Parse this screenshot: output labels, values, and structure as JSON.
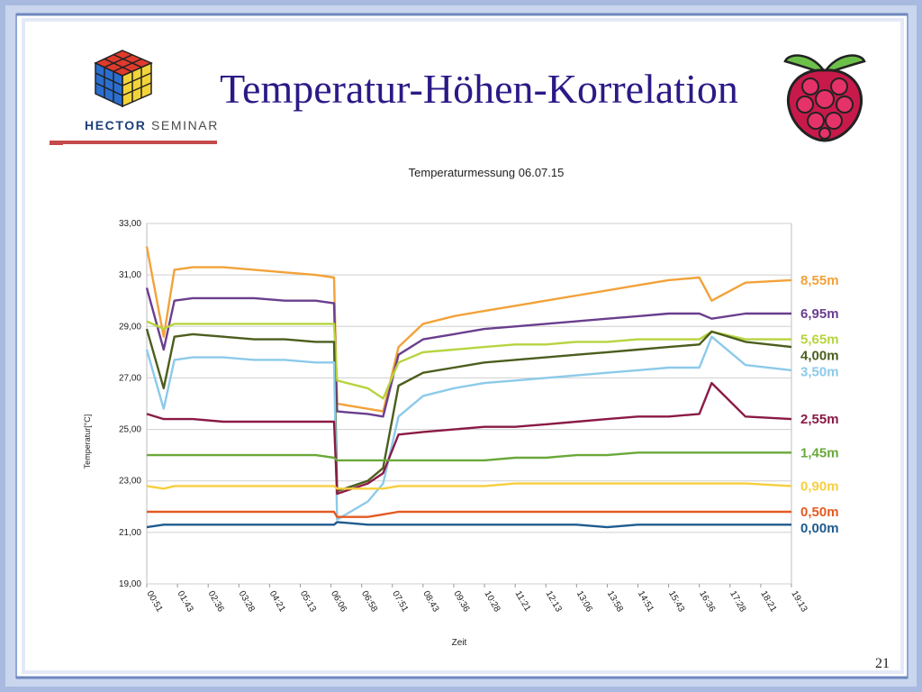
{
  "slide": {
    "title": "Temperatur-Höhen-Korrelation",
    "logo_text_bold": "HECTOR",
    "logo_text_regular": "SEMINAR",
    "page_number": "21",
    "icons": [
      "rubiks-cube-icon",
      "raspberry-pi-logo-icon"
    ]
  },
  "chart_data": {
    "type": "line",
    "title": "Temperaturmessung 06.07.15",
    "xlabel": "Zeit",
    "ylabel": "Temperatur[°C]",
    "ylim": [
      19,
      33
    ],
    "yticks": [
      "33,00",
      "31,00",
      "29,00",
      "27,00",
      "25,00",
      "23,00",
      "21,00",
      "19,00"
    ],
    "yticks_values": [
      33,
      31,
      29,
      27,
      25,
      23,
      21,
      19
    ],
    "x_ticks": [
      "00:51",
      "01:43",
      "02:36",
      "03:28",
      "04:21",
      "05:13",
      "06:06",
      "06:58",
      "07:51",
      "08:43",
      "09:36",
      "10:28",
      "11:21",
      "12:13",
      "13:06",
      "13:58",
      "14:51",
      "15:43",
      "16:36",
      "17:28",
      "18:21",
      "19:13"
    ],
    "grid": true,
    "legend_placement": "right, at line ends",
    "series": [
      {
        "name": "8,55m",
        "color": "#f2a23a",
        "values": [
          32.1,
          28.6,
          31.2,
          31.3,
          31.3,
          31.2,
          31.1,
          31.0,
          30.9,
          26.0,
          25.8,
          25.7,
          28.2,
          29.1,
          29.4,
          29.6,
          29.8,
          30.0,
          30.2,
          30.4,
          30.6,
          30.8,
          30.9,
          30.0,
          30.7,
          30.8
        ]
      },
      {
        "name": "6,95m",
        "color": "#6a3e8e",
        "values": [
          30.5,
          28.1,
          30.0,
          30.1,
          30.1,
          30.1,
          30.0,
          30.0,
          29.9,
          25.7,
          25.6,
          25.5,
          27.9,
          28.5,
          28.7,
          28.9,
          29.0,
          29.1,
          29.2,
          29.3,
          29.4,
          29.5,
          29.5,
          29.3,
          29.5,
          29.5
        ]
      },
      {
        "name": "5,65m",
        "color": "#b7d43f",
        "values": [
          29.2,
          28.9,
          29.1,
          29.1,
          29.1,
          29.1,
          29.1,
          29.1,
          29.1,
          26.9,
          26.6,
          26.2,
          27.6,
          28.0,
          28.1,
          28.2,
          28.3,
          28.3,
          28.4,
          28.4,
          28.5,
          28.5,
          28.5,
          28.8,
          28.5,
          28.5
        ]
      },
      {
        "name": "4,00m",
        "color": "#4b5e1d",
        "values": [
          28.9,
          26.6,
          28.6,
          28.7,
          28.6,
          28.5,
          28.5,
          28.4,
          28.4,
          22.6,
          23.0,
          23.5,
          26.7,
          27.2,
          27.4,
          27.6,
          27.7,
          27.8,
          27.9,
          28.0,
          28.1,
          28.2,
          28.3,
          28.8,
          28.4,
          28.2
        ]
      },
      {
        "name": "3,50m",
        "color": "#8ccaea",
        "values": [
          28.1,
          25.8,
          27.7,
          27.8,
          27.8,
          27.7,
          27.7,
          27.6,
          27.6,
          21.5,
          22.2,
          22.9,
          25.5,
          26.3,
          26.6,
          26.8,
          26.9,
          27.0,
          27.1,
          27.2,
          27.3,
          27.4,
          27.4,
          28.6,
          27.5,
          27.3
        ]
      },
      {
        "name": "2,55m",
        "color": "#8a1a45",
        "values": [
          25.6,
          25.4,
          25.4,
          25.4,
          25.3,
          25.3,
          25.3,
          25.3,
          25.3,
          22.5,
          22.9,
          23.3,
          24.8,
          24.9,
          25.0,
          25.1,
          25.1,
          25.2,
          25.3,
          25.4,
          25.5,
          25.5,
          25.6,
          26.8,
          25.5,
          25.4
        ]
      },
      {
        "name": "1,45m",
        "color": "#6aa83a",
        "values": [
          24.0,
          24.0,
          24.0,
          24.0,
          24.0,
          24.0,
          24.0,
          24.0,
          23.9,
          23.8,
          23.8,
          23.8,
          23.8,
          23.8,
          23.8,
          23.8,
          23.9,
          23.9,
          24.0,
          24.0,
          24.1,
          24.1,
          24.1,
          24.1,
          24.1,
          24.1
        ]
      },
      {
        "name": "0,90m",
        "color": "#f6cf3e",
        "values": [
          22.8,
          22.7,
          22.8,
          22.8,
          22.8,
          22.8,
          22.8,
          22.8,
          22.8,
          22.7,
          22.7,
          22.7,
          22.8,
          22.8,
          22.8,
          22.8,
          22.9,
          22.9,
          22.9,
          22.9,
          22.9,
          22.9,
          22.9,
          22.9,
          22.9,
          22.8
        ]
      },
      {
        "name": "0,50m",
        "color": "#e45a22",
        "values": [
          21.8,
          21.8,
          21.8,
          21.8,
          21.8,
          21.8,
          21.8,
          21.8,
          21.8,
          21.6,
          21.6,
          21.7,
          21.8,
          21.8,
          21.8,
          21.8,
          21.8,
          21.8,
          21.8,
          21.8,
          21.8,
          21.8,
          21.8,
          21.8,
          21.8,
          21.8
        ]
      },
      {
        "name": "0,00m",
        "color": "#1f5b8e",
        "values": [
          21.2,
          21.3,
          21.3,
          21.3,
          21.3,
          21.3,
          21.3,
          21.3,
          21.3,
          21.4,
          21.3,
          21.3,
          21.3,
          21.3,
          21.3,
          21.3,
          21.3,
          21.3,
          21.3,
          21.2,
          21.3,
          21.3,
          21.3,
          21.3,
          21.3,
          21.3
        ]
      }
    ],
    "x_positions": [
      0,
      0.55,
      0.9,
      1.5,
      2.5,
      3.5,
      4.5,
      5.5,
      6.1,
      6.2,
      7.2,
      7.7,
      8.2,
      9.0,
      10.0,
      11.0,
      12.0,
      13.0,
      14.0,
      15.0,
      16.0,
      17.0,
      18.0,
      18.4,
      19.5,
      21.0
    ]
  }
}
